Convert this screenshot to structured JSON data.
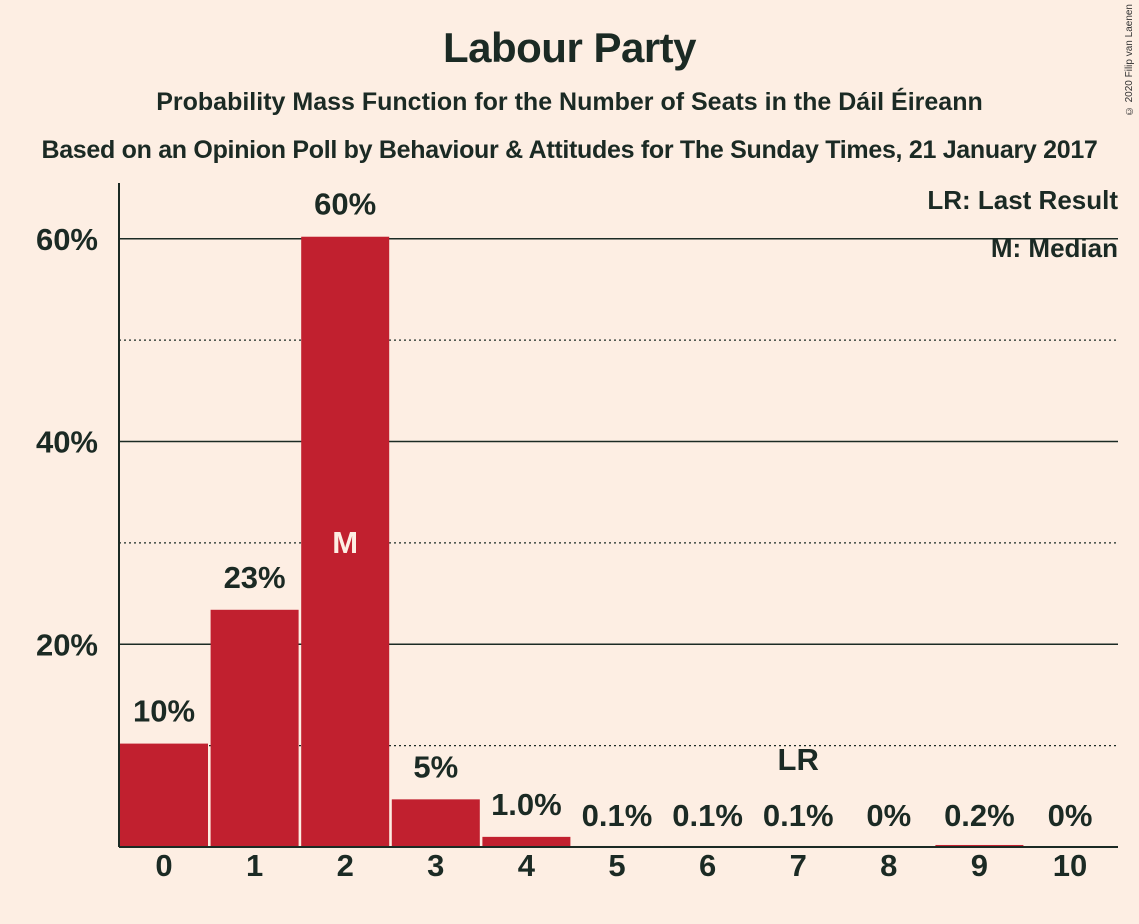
{
  "title": "Labour Party",
  "subtitle": "Probability Mass Function for the Number of Seats in the Dáil Éireann",
  "subtitle2": "Based on an Opinion Poll by Behaviour & Attitudes for The Sunday Times, 21 January 2017",
  "copyright": "© 2020 Filip van Laenen",
  "legend": {
    "lr": "LR: Last Result",
    "m": "M: Median"
  },
  "colors": {
    "background": "#FDEEE3",
    "bar": "#C1202F",
    "text": "#1B2A24"
  },
  "chart_data": {
    "type": "bar",
    "categories": [
      "0",
      "1",
      "2",
      "3",
      "4",
      "5",
      "6",
      "7",
      "8",
      "9",
      "10"
    ],
    "values": [
      10.2,
      23.4,
      60.2,
      4.7,
      1.0,
      0.1,
      0.1,
      0.1,
      0.02,
      0.2,
      0.01
    ],
    "labels": [
      "10%",
      "23%",
      "60%",
      "5%",
      "1.0%",
      "0.1%",
      "0.1%",
      "0.1%",
      "0%",
      "0.2%",
      "0%"
    ],
    "median_index": 2,
    "median_marker": "M",
    "last_result_index": 7,
    "last_result_marker": "LR",
    "yticks": [
      20,
      40,
      60
    ],
    "ytick_labels": [
      "20%",
      "40%",
      "60%"
    ],
    "minor_gridlines": [
      10,
      30,
      50
    ],
    "ylim": [
      0,
      65.5
    ],
    "grid": true,
    "legend_position": "top-right"
  }
}
